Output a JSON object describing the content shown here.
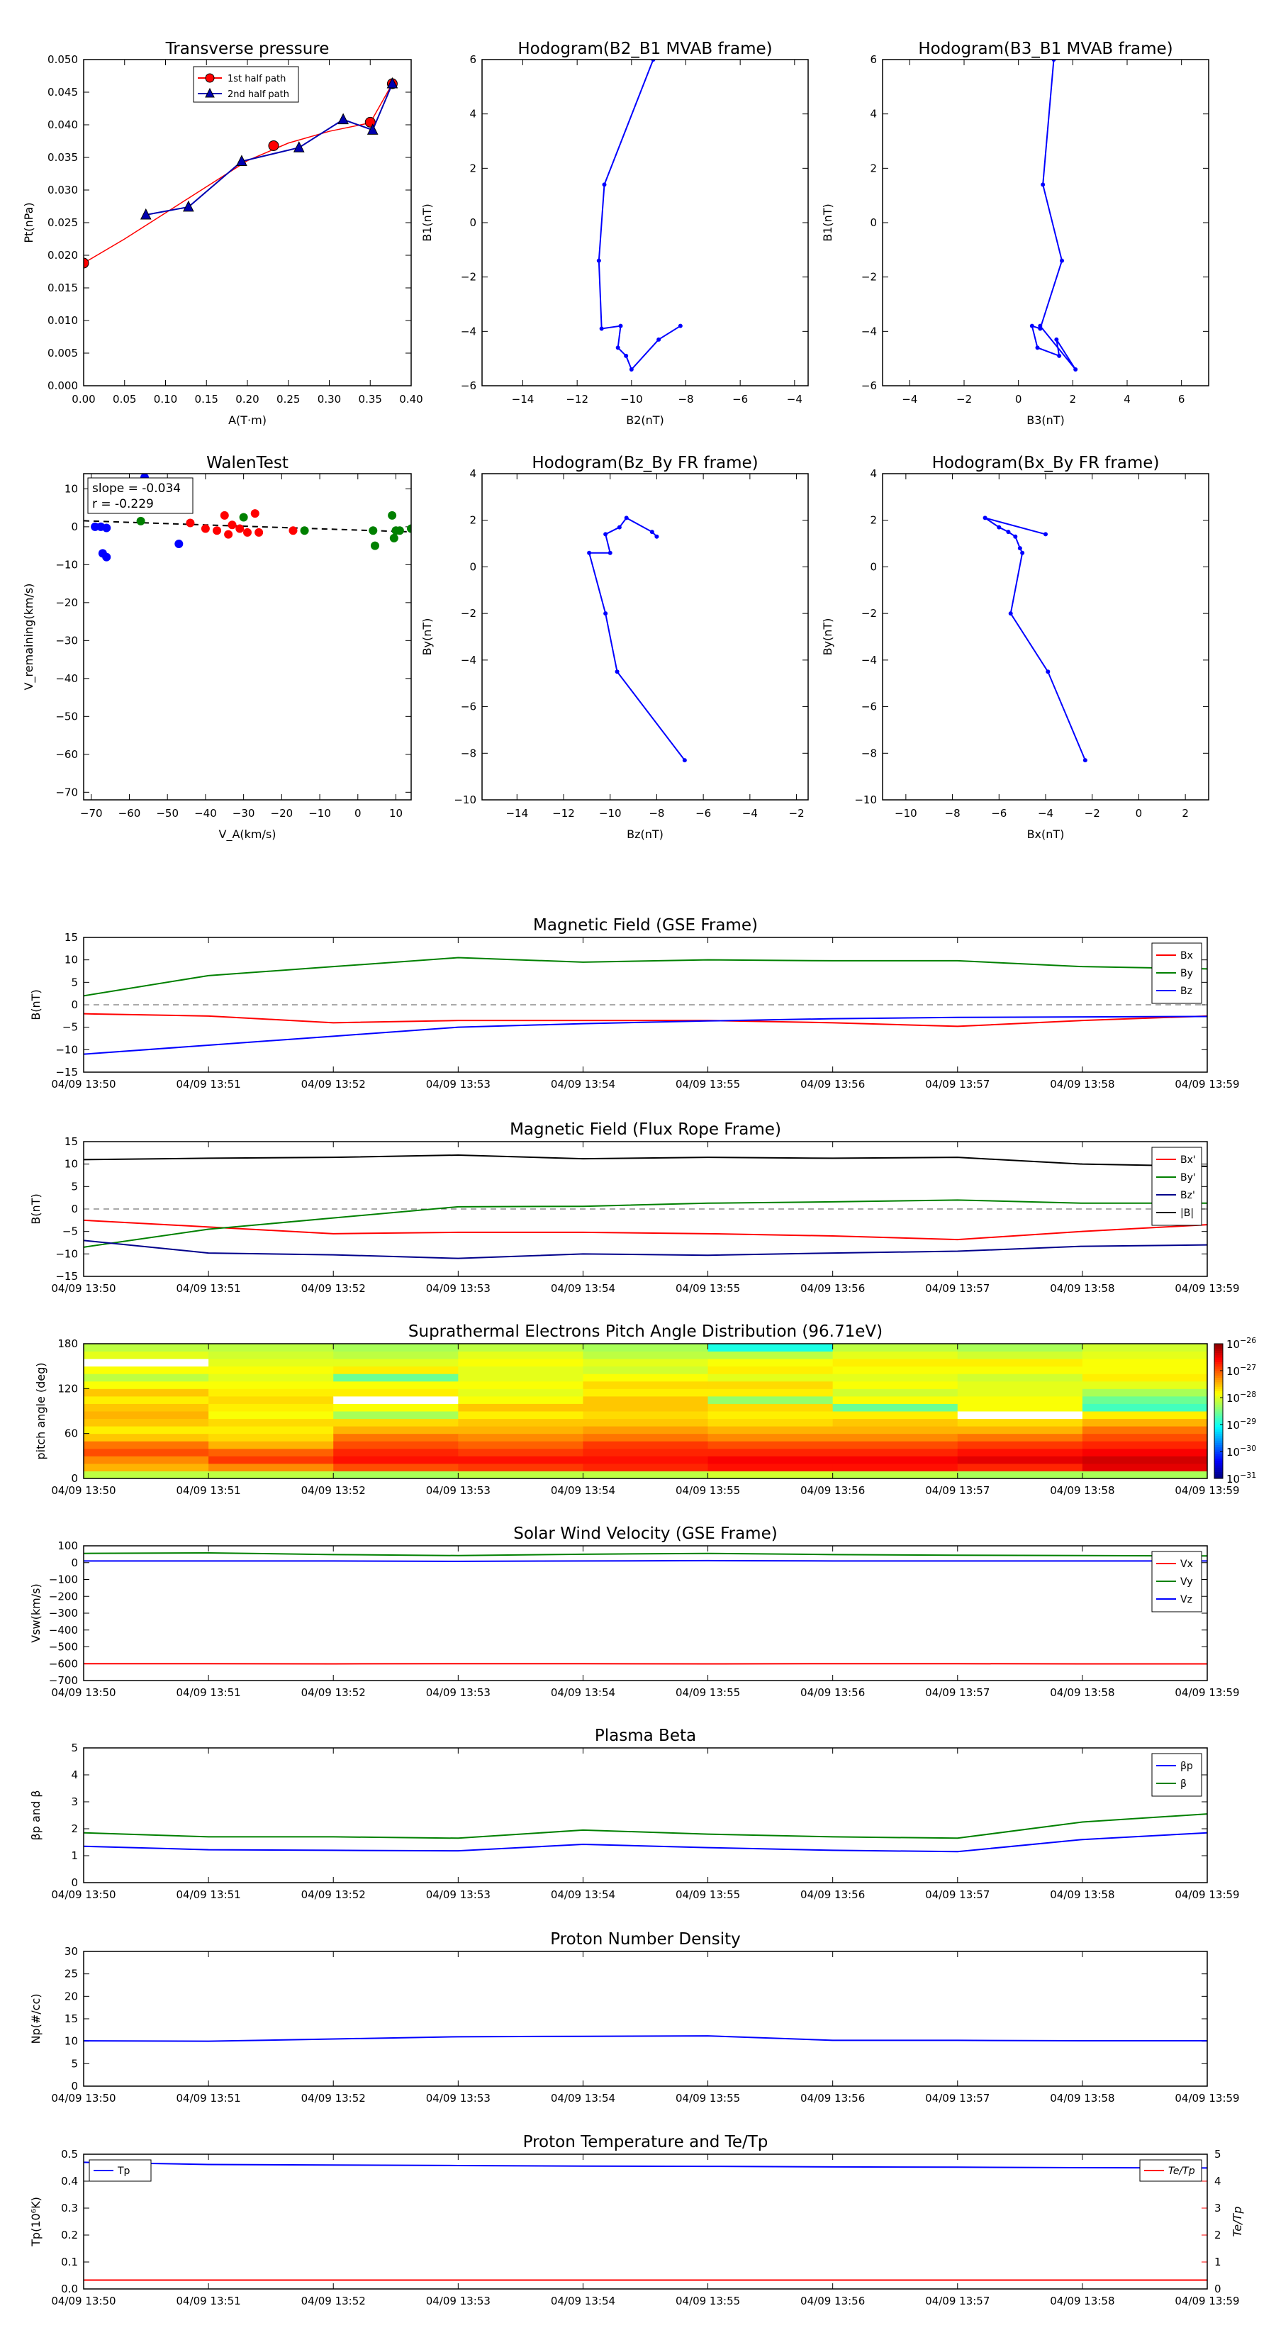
{
  "event_date": "04/09",
  "time_ticks": [
    "13:50",
    "13:51",
    "13:52",
    "13:53",
    "13:54",
    "13:55",
    "13:56",
    "13:57",
    "13:58",
    "13:59"
  ],
  "chart_data": [
    {
      "id": "transverse-pressure",
      "type": "line",
      "title": "Transverse pressure",
      "xlabel": "A(T·m)",
      "ylabel": "Pt(nPa)",
      "xlim": [
        0.0,
        0.4
      ],
      "ylim": [
        0.0,
        0.05
      ],
      "xticks": [
        0.0,
        0.05,
        0.1,
        0.15,
        0.2,
        0.25,
        0.3,
        0.35,
        0.4
      ],
      "xtick_decimals": 2,
      "yticks": [
        0.0,
        0.005,
        0.01,
        0.015,
        0.02,
        0.025,
        0.03,
        0.035,
        0.04,
        0.045,
        0.05
      ],
      "ytick_decimals": 3,
      "grid": false,
      "legend": "top-center",
      "series": [
        {
          "name": "1st half path",
          "color": "#ff0000",
          "marker": "circle",
          "x": [
            0.0,
            0.232,
            0.35,
            0.377
          ],
          "y": [
            0.0188,
            0.0368,
            0.0404,
            0.0463
          ]
        },
        {
          "name": "2nd half path",
          "color": "#0000b0",
          "marker": "triangle",
          "x": [
            0.377,
            0.353,
            0.317,
            0.263,
            0.193,
            0.128,
            0.076
          ],
          "y": [
            0.0463,
            0.0392,
            0.0408,
            0.0365,
            0.0344,
            0.0274,
            0.0262
          ]
        }
      ],
      "fit_curve": {
        "color": "#ff0000",
        "x": [
          0.0,
          0.05,
          0.1,
          0.15,
          0.2,
          0.25,
          0.3,
          0.35,
          0.377
        ],
        "y": [
          0.0188,
          0.0225,
          0.0265,
          0.0305,
          0.0345,
          0.0372,
          0.039,
          0.0403,
          0.0463
        ]
      }
    },
    {
      "id": "hodogram-b2-b1",
      "type": "line",
      "title": "Hodogram(B2_B1 MVAB frame)",
      "xlabel": "B2(nT)",
      "ylabel": "B1(nT)",
      "xlim": [
        -15.5,
        -3.5
      ],
      "ylim": [
        -6,
        6
      ],
      "xticks": [
        -14,
        -12,
        -10,
        -8,
        -6,
        -4
      ],
      "yticks": [
        -6,
        -4,
        -2,
        0,
        2,
        4,
        6
      ],
      "grid": false,
      "series": [
        {
          "color": "#0000ff",
          "marker": "dot",
          "x": [
            -9.2,
            -11.0,
            -11.2,
            -11.1,
            -10.4,
            -10.5,
            -10.2,
            -10.0,
            -9.0,
            -8.2
          ],
          "y": [
            6.0,
            1.4,
            -1.4,
            -3.9,
            -3.8,
            -4.6,
            -4.9,
            -5.4,
            -4.3,
            -3.8
          ]
        }
      ]
    },
    {
      "id": "hodogram-b3-b1",
      "type": "line",
      "title": "Hodogram(B3_B1 MVAB frame)",
      "xlabel": "B3(nT)",
      "ylabel": "B1(nT)",
      "xlim": [
        -5,
        7
      ],
      "ylim": [
        -6,
        6
      ],
      "xticks": [
        -4,
        -2,
        0,
        2,
        4,
        6
      ],
      "yticks": [
        -6,
        -4,
        -2,
        0,
        2,
        4,
        6
      ],
      "grid": false,
      "series": [
        {
          "color": "#0000ff",
          "marker": "dot",
          "x": [
            1.3,
            0.9,
            1.6,
            0.8,
            0.5,
            0.7,
            1.5,
            1.4,
            2.1,
            0.8
          ],
          "y": [
            6.0,
            1.4,
            -1.4,
            -3.9,
            -3.8,
            -4.6,
            -4.9,
            -4.3,
            -5.4,
            -3.8
          ]
        }
      ]
    },
    {
      "id": "walen-test",
      "type": "scatter",
      "title": "WalenTest",
      "xlabel": "V_A(km/s)",
      "ylabel": "V_remaining(km/s)",
      "xlim": [
        -72,
        14
      ],
      "ylim": [
        -72,
        14
      ],
      "xticks": [
        -70,
        -60,
        -50,
        -40,
        -30,
        -20,
        -10,
        0,
        10
      ],
      "yticks": [
        -70,
        -60,
        -50,
        -40,
        -30,
        -20,
        -10,
        0,
        10
      ],
      "grid": false,
      "annotations": [
        "slope = -0.034",
        "r = -0.229"
      ],
      "fit_line": {
        "color": "#000000",
        "style": "dashed",
        "x": [
          -72,
          14
        ],
        "y": [
          1.58,
          -1.35
        ]
      },
      "series": [
        {
          "color": "#0000ff",
          "x": [
            -69,
            -67.5,
            -67,
            -66,
            -66,
            -56,
            -47
          ],
          "y": [
            0,
            0,
            -7,
            -8,
            -0.3,
            13,
            -4.5
          ]
        },
        {
          "color": "#ff0000",
          "x": [
            -44,
            -40,
            -37,
            -35,
            -34,
            -33,
            -31,
            -29,
            -27,
            -26,
            -17
          ],
          "y": [
            1,
            -0.5,
            -1,
            3,
            -2,
            0.5,
            -0.5,
            -1.5,
            3.5,
            -1.5,
            -1
          ]
        },
        {
          "color": "#008000",
          "x": [
            -57,
            -30,
            -14,
            4,
            4.5,
            9,
            9.5,
            10,
            11,
            14
          ],
          "y": [
            1.5,
            2.5,
            -1,
            -1,
            -5,
            3,
            -3,
            -1,
            -1,
            -0.5
          ]
        }
      ]
    },
    {
      "id": "hodogram-bz-by",
      "type": "line",
      "title": "Hodogram(Bz_By FR frame)",
      "xlabel": "Bz(nT)",
      "ylabel": "By(nT)",
      "xlim": [
        -15.5,
        -1.5
      ],
      "ylim": [
        -10,
        4
      ],
      "xticks": [
        -14,
        -12,
        -10,
        -8,
        -6,
        -4,
        -2
      ],
      "yticks": [
        -10,
        -8,
        -6,
        -4,
        -2,
        0,
        2,
        4
      ],
      "grid": false,
      "series": [
        {
          "color": "#0000ff",
          "marker": "dot",
          "x": [
            -6.8,
            -9.7,
            -10.2,
            -10.9,
            -10.0,
            -10.2,
            -9.6,
            -9.3,
            -8.2,
            -8.0
          ],
          "y": [
            -8.3,
            -4.5,
            -2.0,
            0.6,
            0.6,
            1.4,
            1.7,
            2.1,
            1.5,
            1.3
          ]
        }
      ]
    },
    {
      "id": "hodogram-bx-by",
      "type": "line",
      "title": "Hodogram(Bx_By FR frame)",
      "xlabel": "Bx(nT)",
      "ylabel": "By(nT)",
      "xlim": [
        -11,
        3
      ],
      "ylim": [
        -10,
        4
      ],
      "xticks": [
        -10,
        -8,
        -6,
        -4,
        -2,
        0,
        2
      ],
      "yticks": [
        -10,
        -8,
        -6,
        -4,
        -2,
        0,
        2,
        4
      ],
      "grid": false,
      "series": [
        {
          "color": "#0000ff",
          "marker": "dot",
          "x": [
            -2.3,
            -3.9,
            -5.5,
            -5.0,
            -5.1,
            -5.3,
            -5.6,
            -6.0,
            -6.6,
            -4.0
          ],
          "y": [
            -8.3,
            -4.5,
            -2.0,
            0.6,
            0.8,
            1.3,
            1.5,
            1.7,
            2.1,
            1.4
          ]
        }
      ]
    },
    {
      "id": "magnetic-field-gse",
      "type": "line",
      "title": "Magnetic Field (GSE Frame)",
      "ylabel": "B(nT)",
      "ylim": [
        -15,
        15
      ],
      "yticks": [
        -15,
        -10,
        -5,
        0,
        5,
        10,
        15
      ],
      "grid": false,
      "zero_line": true,
      "legend": "top-right",
      "x_minutes": [
        0,
        1,
        2,
        3,
        4,
        5,
        6,
        7,
        8,
        9
      ],
      "series": [
        {
          "name": "Bx",
          "color": "#ff0000",
          "values": [
            -2.0,
            -2.5,
            -4.0,
            -3.5,
            -3.5,
            -3.5,
            -4.0,
            -4.8,
            -3.5,
            -2.5
          ]
        },
        {
          "name": "By",
          "color": "#008000",
          "values": [
            2.0,
            6.5,
            8.5,
            10.5,
            9.5,
            10.0,
            9.8,
            9.8,
            8.5,
            8.0
          ]
        },
        {
          "name": "Bz",
          "color": "#0000ff",
          "values": [
            -11.0,
            -9.0,
            -7.0,
            -5.0,
            -4.2,
            -3.6,
            -3.1,
            -2.8,
            -2.7,
            -2.6
          ]
        }
      ]
    },
    {
      "id": "magnetic-field-fr",
      "type": "line",
      "title": "Magnetic Field (Flux Rope Frame)",
      "ylabel": "B(nT)",
      "ylim": [
        -15,
        15
      ],
      "yticks": [
        -15,
        -10,
        -5,
        0,
        5,
        10,
        15
      ],
      "grid": false,
      "zero_line": true,
      "legend": "top-right",
      "x_minutes": [
        0,
        1,
        2,
        3,
        4,
        5,
        6,
        7,
        8,
        9
      ],
      "series": [
        {
          "name": "Bx'",
          "color": "#ff0000",
          "values": [
            -2.5,
            -4.0,
            -5.5,
            -5.2,
            -5.2,
            -5.5,
            -6.0,
            -6.8,
            -5.0,
            -3.5
          ]
        },
        {
          "name": "By'",
          "color": "#008000",
          "values": [
            -8.5,
            -4.5,
            -2.0,
            0.5,
            0.6,
            1.3,
            1.6,
            2.0,
            1.3,
            1.3
          ]
        },
        {
          "name": "Bz'",
          "color": "#00008b",
          "values": [
            -7.0,
            -9.8,
            -10.2,
            -11.0,
            -10.0,
            -10.3,
            -9.8,
            -9.4,
            -8.3,
            -8.0
          ]
        },
        {
          "name": "|B|",
          "color": "#000000",
          "values": [
            11.0,
            11.3,
            11.5,
            12.0,
            11.2,
            11.5,
            11.3,
            11.5,
            10.0,
            9.5
          ]
        }
      ]
    },
    {
      "id": "pitch-angle-distribution",
      "type": "heatmap",
      "title": "Suprathermal Electrons Pitch Angle Distribution (96.71eV)",
      "ylabel": "pitch angle (deg)",
      "ylim": [
        0,
        180
      ],
      "yticks": [
        0,
        60,
        120,
        180
      ],
      "colorbar_exponents": [
        -31,
        -30,
        -29,
        -28,
        -27,
        -26
      ],
      "colorbar_range": [
        -31,
        -26
      ],
      "colormap": "jet",
      "time_bins": 9,
      "angle_bins": 18,
      "log_values": [
        [
          -28.2,
          -27.5,
          -27.3,
          -27.0,
          -27.2,
          -27.6,
          -27.8,
          -27.6,
          -27.5,
          -27.6,
          -27.8,
          -27.6,
          -27.9,
          -28.2,
          -27.9,
          -30.0,
          -28.0,
          -28.2
        ],
        [
          -28.2,
          -27.3,
          -26.9,
          -27.1,
          -27.5,
          -27.7,
          -27.8,
          -27.7,
          -27.9,
          -27.8,
          -27.7,
          -27.8,
          -27.9,
          -28.0,
          -27.9,
          -28.0,
          -28.1,
          -28.2
        ],
        [
          -28.3,
          -27.0,
          -26.7,
          -26.8,
          -27.0,
          -27.2,
          -27.5,
          -27.7,
          -28.3,
          -27.9,
          -30.0,
          -27.8,
          -27.9,
          -28.6,
          -27.8,
          -28.0,
          -28.2,
          -28.3
        ],
        [
          -28.2,
          -26.9,
          -26.7,
          -26.9,
          -27.1,
          -27.3,
          -27.5,
          -27.6,
          -27.8,
          -27.6,
          -27.9,
          -28.0,
          -27.9,
          -28.0,
          -28.0,
          -27.9,
          -28.0,
          -28.2
        ],
        [
          -28.2,
          -26.8,
          -26.7,
          -26.8,
          -26.9,
          -27.2,
          -27.4,
          -27.6,
          -27.7,
          -27.6,
          -27.6,
          -27.8,
          -27.7,
          -27.9,
          -28.1,
          -28.0,
          -28.2,
          -28.3
        ],
        [
          -28.1,
          -26.7,
          -26.6,
          -26.8,
          -27.0,
          -27.3,
          -27.5,
          -27.7,
          -27.8,
          -27.7,
          -28.4,
          -27.8,
          -27.7,
          -28.0,
          -27.8,
          -27.9,
          -28.2,
          -29.0
        ],
        [
          -28.2,
          -26.7,
          -26.6,
          -26.8,
          -27.0,
          -27.3,
          -27.5,
          -27.6,
          -27.8,
          -28.6,
          -27.9,
          -28.1,
          -27.9,
          -28.0,
          -27.9,
          -27.8,
          -28.0,
          -28.2
        ],
        [
          -28.3,
          -26.8,
          -26.5,
          -26.7,
          -26.9,
          -27.2,
          -27.5,
          -27.7,
          -29.9,
          -27.9,
          -27.9,
          -28.0,
          -28.0,
          -28.1,
          -27.9,
          -27.8,
          -28.1,
          -28.3
        ],
        [
          -28.3,
          -26.5,
          -26.4,
          -26.6,
          -26.8,
          -27.0,
          -27.2,
          -27.5,
          -27.8,
          -28.8,
          -28.6,
          -28.3,
          -28.0,
          -27.8,
          -27.9,
          -27.9,
          -28.0,
          -28.1
        ]
      ]
    },
    {
      "id": "solar-wind-velocity",
      "type": "line",
      "title": "Solar Wind Velocity (GSE Frame)",
      "ylabel": "Vsw(km/s)",
      "ylim": [
        -700,
        100
      ],
      "yticks": [
        -700,
        -600,
        -500,
        -400,
        -300,
        -200,
        -100,
        0,
        100
      ],
      "grid": false,
      "legend": "top-right",
      "x_minutes": [
        0,
        1,
        2,
        3,
        4,
        5,
        6,
        7,
        8,
        9
      ],
      "series": [
        {
          "name": "Vx",
          "color": "#ff0000",
          "values": [
            -600,
            -600,
            -601,
            -600,
            -600,
            -601,
            -600,
            -600,
            -601,
            -601
          ]
        },
        {
          "name": "Vy",
          "color": "#008000",
          "values": [
            55,
            58,
            48,
            42,
            50,
            55,
            48,
            44,
            42,
            40
          ]
        },
        {
          "name": "Vz",
          "color": "#0000ff",
          "values": [
            10,
            10,
            10,
            8,
            10,
            12,
            10,
            10,
            10,
            10
          ]
        }
      ]
    },
    {
      "id": "plasma-beta",
      "type": "line",
      "title": "Plasma Beta",
      "ylabel": "βp and β",
      "ylim": [
        0,
        5
      ],
      "yticks": [
        0,
        1,
        2,
        3,
        4,
        5
      ],
      "grid": false,
      "legend": "top-right",
      "x_minutes": [
        0,
        1,
        2,
        3,
        4,
        5,
        6,
        7,
        8,
        9
      ],
      "series": [
        {
          "name": "βp",
          "color": "#0000ff",
          "values": [
            1.35,
            1.22,
            1.2,
            1.18,
            1.42,
            1.3,
            1.2,
            1.15,
            1.6,
            1.85
          ]
        },
        {
          "name": "β",
          "color": "#008000",
          "values": [
            1.85,
            1.7,
            1.7,
            1.65,
            1.95,
            1.8,
            1.7,
            1.65,
            2.25,
            2.55
          ]
        }
      ]
    },
    {
      "id": "proton-number-density",
      "type": "line",
      "title": "Proton Number Density",
      "ylabel": "Np(#/cc)",
      "ylim": [
        0,
        30
      ],
      "yticks": [
        0,
        5,
        10,
        15,
        20,
        25,
        30
      ],
      "grid": false,
      "x_minutes": [
        0,
        1,
        2,
        3,
        4,
        5,
        6,
        7,
        8,
        9
      ],
      "series": [
        {
          "color": "#0000ff",
          "values": [
            10.1,
            10.0,
            10.5,
            11.0,
            11.1,
            11.2,
            10.2,
            10.2,
            10.1,
            10.1
          ]
        }
      ]
    },
    {
      "id": "proton-temperature",
      "type": "line",
      "title": "Proton Temperature and Te/Tp",
      "ylabel": "Tp(10⁶K)",
      "ylabel_right": "Te/Tp",
      "ylim": [
        0,
        0.5
      ],
      "yticks": [
        0,
        0.1,
        0.2,
        0.3,
        0.4,
        0.5
      ],
      "ytick_decimals": 1,
      "ylim_right": [
        0,
        5
      ],
      "yticks_right": [
        0,
        1,
        2,
        3,
        4,
        5
      ],
      "grid": false,
      "x_minutes": [
        0,
        1,
        2,
        3,
        4,
        5,
        6,
        7,
        8,
        9
      ],
      "series": [
        {
          "name": "Tp",
          "color": "#0000ff",
          "axis": "left",
          "legend": "top-left",
          "values": [
            0.47,
            0.462,
            0.46,
            0.458,
            0.456,
            0.455,
            0.453,
            0.452,
            0.45,
            0.449
          ]
        },
        {
          "name": "Te/Tp",
          "color": "#ff0000",
          "axis": "right",
          "legend": "top-right",
          "values": [
            0.33,
            0.33,
            0.33,
            0.33,
            0.33,
            0.33,
            0.33,
            0.33,
            0.33,
            0.33
          ]
        }
      ]
    }
  ]
}
